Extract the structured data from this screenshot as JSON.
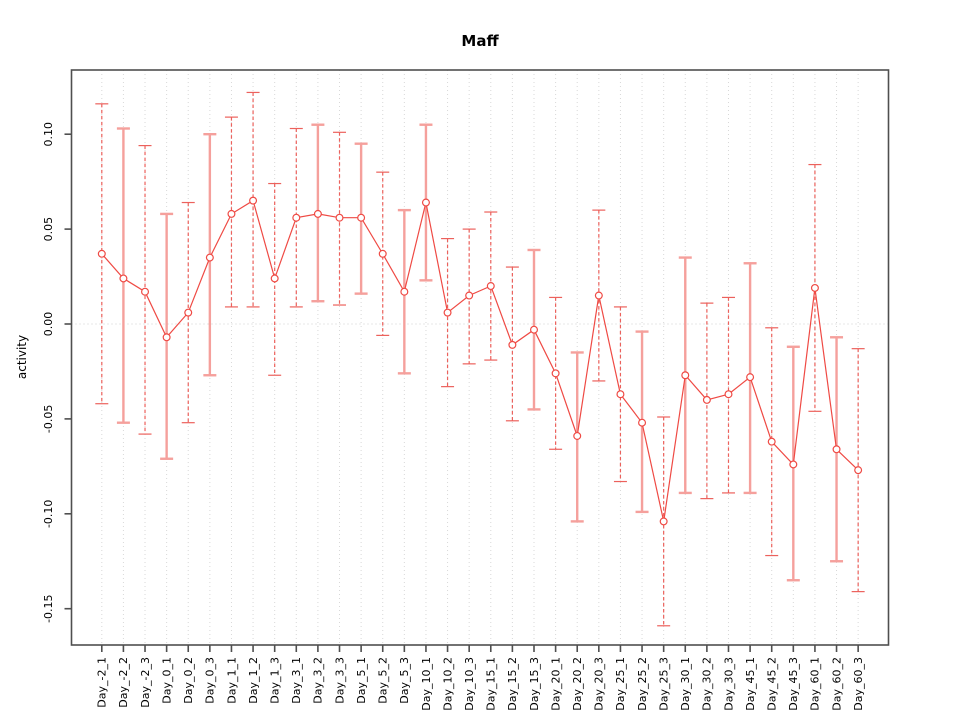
{
  "title": "Maff",
  "ylabel": "activity",
  "xlabel": "",
  "colors": {
    "point_line": "#ef4a44",
    "error_solid": "#f5a09c",
    "error_dashed": "#ec615c",
    "grid": "#d8d8d8",
    "zero_line": "#d0d0d0",
    "axis_box": "#4f4f4f",
    "text": "#000000",
    "background": "#ffffff"
  },
  "chart_data": {
    "type": "line",
    "title": "Maff",
    "xlabel": "",
    "ylabel": "activity",
    "legend": "none",
    "grid": "vertical dotted gridlines at each category; dotted horizontal line at y=0",
    "ylim": [
      -0.169,
      0.134
    ],
    "yticks": [
      {
        "label": "0.10",
        "value": 0.1
      },
      {
        "label": "0.05",
        "value": 0.05
      },
      {
        "label": "0.00",
        "value": 0.0
      },
      {
        "label": "-0.05",
        "value": -0.05
      },
      {
        "label": "-0.10",
        "value": -0.1
      },
      {
        "label": "-0.15",
        "value": -0.15
      }
    ],
    "categories": [
      "Day_-2_1",
      "Day_-2_2",
      "Day_-2_3",
      "Day_0_1",
      "Day_0_2",
      "Day_0_3",
      "Day_1_1",
      "Day_1_2",
      "Day_1_3",
      "Day_3_1",
      "Day_3_2",
      "Day_3_3",
      "Day_5_1",
      "Day_5_2",
      "Day_5_3",
      "Day_10_1",
      "Day_10_2",
      "Day_10_3",
      "Day_15_1",
      "Day_15_2",
      "Day_15_3",
      "Day_20_1",
      "Day_20_2",
      "Day_20_3",
      "Day_25_1",
      "Day_25_2",
      "Day_25_3",
      "Day_30_1",
      "Day_30_2",
      "Day_30_3",
      "Day_45_1",
      "Day_45_2",
      "Day_45_3",
      "Day_60_1",
      "Day_60_2",
      "Day_60_3"
    ],
    "series": [
      {
        "name": "activity",
        "marker": "open-circle",
        "values": [
          0.037,
          0.024,
          0.017,
          -0.007,
          0.006,
          0.035,
          0.058,
          0.065,
          0.024,
          0.056,
          0.058,
          0.056,
          0.056,
          0.037,
          0.017,
          0.064,
          0.006,
          0.015,
          0.02,
          -0.011,
          -0.003,
          -0.026,
          -0.059,
          0.015,
          -0.037,
          -0.052,
          -0.104,
          -0.027,
          -0.04,
          -0.037,
          -0.028,
          -0.062,
          -0.074,
          0.019,
          -0.066,
          -0.077
        ]
      }
    ],
    "error_low": [
      -0.042,
      -0.052,
      -0.058,
      -0.071,
      -0.052,
      -0.027,
      0.009,
      0.009,
      -0.027,
      0.009,
      0.012,
      0.01,
      0.016,
      -0.006,
      -0.026,
      0.023,
      -0.033,
      -0.021,
      -0.019,
      -0.051,
      -0.045,
      -0.066,
      -0.104,
      -0.03,
      -0.083,
      -0.099,
      -0.159,
      -0.089,
      -0.092,
      -0.089,
      -0.089,
      -0.122,
      -0.135,
      -0.046,
      -0.125,
      -0.141
    ],
    "error_high": [
      0.116,
      0.103,
      0.094,
      0.058,
      0.064,
      0.1,
      0.109,
      0.122,
      0.074,
      0.103,
      0.105,
      0.101,
      0.095,
      0.08,
      0.06,
      0.105,
      0.045,
      0.05,
      0.059,
      0.03,
      0.039,
      0.014,
      -0.015,
      0.06,
      0.009,
      -0.004,
      -0.049,
      0.035,
      0.011,
      0.014,
      0.032,
      -0.002,
      -0.012,
      0.084,
      -0.007,
      -0.013
    ],
    "bar_styles": [
      "dashed",
      "solid",
      "dashed",
      "solid",
      "dashed",
      "solid",
      "dashed",
      "dashed",
      "dashed",
      "dashed",
      "solid",
      "dashed",
      "solid",
      "dashed",
      "solid",
      "solid",
      "dashed",
      "dashed",
      "dashed",
      "dashed",
      "solid",
      "dashed",
      "solid",
      "dashed",
      "dashed",
      "solid",
      "dashed",
      "solid",
      "dashed",
      "dashed",
      "solid",
      "dashed",
      "solid",
      "dashed",
      "solid",
      "dashed"
    ]
  }
}
